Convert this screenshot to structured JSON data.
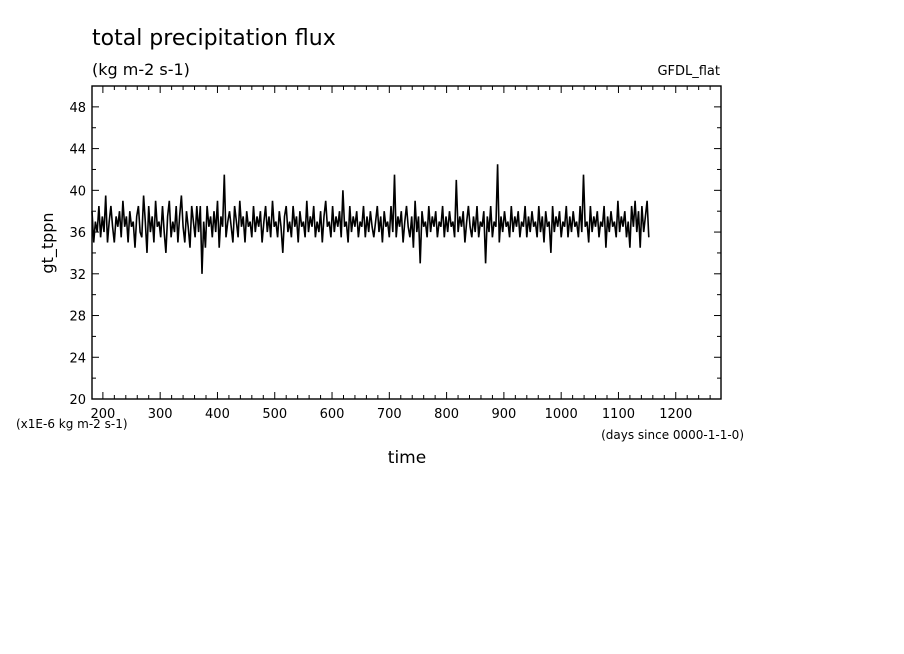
{
  "chart_data": {
    "type": "line",
    "title": "total precipitation flux",
    "subtitle": "(kg m-2 s-1)",
    "annotation_right": "GFDL_flat",
    "ylabel": "gt_tppn",
    "yunit_note": "(x1E-6 kg m-2 s-1)",
    "xlabel": "time",
    "xunit_note": "(days since 0000-1-1-0)",
    "xlim": [
      181,
      1279
    ],
    "ylim": [
      20,
      50
    ],
    "xticks": [
      200,
      300,
      400,
      500,
      600,
      700,
      800,
      900,
      1000,
      1100,
      1200
    ],
    "yticks": [
      20,
      24,
      28,
      32,
      36,
      40,
      44,
      48
    ],
    "grid": false,
    "series": [
      {
        "x_start": 181,
        "x_step": 3,
        "values": [
          38.0,
          35.0,
          37.0,
          36.0,
          38.5,
          35.5,
          37.5,
          36.0,
          39.5,
          35.0,
          37.0,
          38.5,
          36.5,
          35.0,
          37.5,
          36.5,
          38.0,
          35.5,
          39.0,
          36.5,
          37.5,
          35.0,
          38.0,
          36.5,
          37.0,
          34.5,
          37.5,
          38.5,
          36.0,
          35.5,
          39.5,
          37.0,
          34.0,
          38.5,
          36.0,
          37.5,
          35.0,
          39.0,
          36.5,
          37.0,
          35.5,
          38.5,
          36.0,
          34.0,
          37.5,
          39.0,
          35.5,
          37.0,
          36.0,
          38.5,
          35.0,
          37.5,
          39.5,
          36.5,
          35.0,
          38.0,
          36.5,
          34.5,
          38.5,
          37.0,
          35.5,
          38.5,
          36.0,
          38.5,
          32.0,
          37.0,
          34.5,
          38.5,
          36.5,
          37.5,
          35.5,
          38.0,
          36.0,
          39.0,
          34.5,
          37.5,
          36.5,
          41.5,
          35.5,
          37.0,
          38.0,
          36.5,
          35.0,
          38.5,
          37.0,
          35.5,
          39.0,
          36.5,
          37.5,
          35.0,
          38.0,
          36.5,
          37.0,
          35.5,
          38.5,
          36.0,
          37.5,
          36.5,
          38.0,
          35.0,
          37.0,
          38.5,
          36.0,
          37.5,
          35.5,
          39.0,
          36.5,
          37.0,
          35.5,
          38.0,
          36.5,
          34.0,
          37.5,
          38.5,
          36.0,
          37.0,
          35.5,
          38.5,
          36.5,
          37.5,
          35.0,
          38.0,
          36.5,
          37.0,
          35.5,
          39.0,
          36.0,
          37.5,
          36.5,
          38.5,
          35.5,
          37.0,
          36.0,
          38.0,
          35.0,
          37.5,
          39.0,
          36.5,
          37.0,
          35.5,
          38.5,
          36.0,
          37.5,
          36.5,
          38.0,
          35.5,
          40.0,
          36.5,
          37.0,
          35.0,
          38.5,
          36.0,
          37.5,
          36.5,
          38.0,
          35.5,
          37.0,
          36.5,
          38.5,
          35.5,
          37.5,
          36.0,
          38.0,
          36.5,
          35.5,
          37.0,
          38.5,
          36.0,
          37.5,
          35.0,
          38.0,
          36.5,
          37.0,
          35.5,
          38.5,
          36.0,
          41.5,
          35.5,
          37.5,
          36.5,
          38.0,
          35.0,
          37.0,
          38.5,
          36.5,
          35.5,
          37.5,
          34.5,
          39.0,
          36.0,
          37.5,
          33.0,
          38.0,
          36.5,
          37.0,
          35.5,
          38.5,
          36.0,
          37.5,
          36.5,
          38.0,
          35.5,
          37.0,
          36.5,
          38.5,
          35.5,
          37.5,
          36.0,
          38.0,
          36.5,
          37.0,
          35.5,
          41.0,
          36.0,
          37.5,
          36.5,
          38.0,
          35.0,
          37.0,
          38.5,
          36.5,
          35.5,
          37.5,
          36.0,
          38.5,
          35.5,
          37.0,
          36.5,
          38.0,
          33.0,
          37.5,
          36.0,
          38.5,
          35.5,
          37.0,
          36.5,
          42.5,
          35.0,
          37.5,
          36.0,
          38.0,
          36.5,
          37.0,
          35.5,
          38.5,
          36.0,
          37.5,
          36.5,
          38.0,
          35.5,
          37.0,
          36.5,
          38.5,
          35.5,
          37.5,
          36.0,
          38.0,
          36.5,
          37.0,
          35.5,
          38.5,
          36.0,
          37.5,
          35.0,
          38.0,
          36.5,
          37.0,
          34.0,
          38.5,
          36.0,
          37.5,
          36.5,
          38.0,
          35.5,
          37.0,
          36.5,
          38.5,
          35.5,
          37.5,
          36.0,
          38.0,
          36.5,
          37.0,
          35.5,
          38.5,
          36.0,
          41.5,
          36.5,
          37.0,
          35.0,
          38.5,
          36.0,
          37.5,
          36.5,
          38.0,
          35.5,
          37.0,
          36.5,
          38.5,
          34.5,
          37.5,
          36.0,
          38.0,
          36.5,
          37.0,
          35.5,
          39.0,
          36.0,
          37.5,
          36.5,
          38.0,
          35.5,
          37.0,
          34.5,
          38.5,
          36.5,
          39.0,
          36.0,
          38.0,
          34.5,
          38.5,
          36.0,
          37.5,
          39.0,
          35.5
        ]
      }
    ]
  }
}
